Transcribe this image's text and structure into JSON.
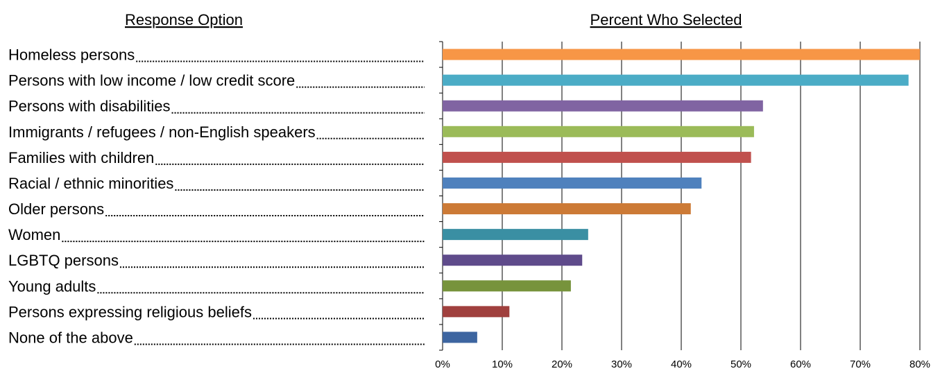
{
  "chart_data": {
    "type": "bar",
    "orientation": "horizontal",
    "y_label": "Response Option",
    "x_label": "Percent Who Selected",
    "categories": [
      "Homeless persons",
      "Persons with low income / low credit score",
      "Persons with disabilities",
      "Immigrants / refugees / non-English speakers",
      "Families with children",
      "Racial / ethnic minorities",
      "Older persons",
      "Women",
      "LGBTQ persons",
      "Young adults",
      "Persons expressing religious beliefs",
      "None of the above"
    ],
    "values": [
      80,
      78.1,
      53.7,
      52.2,
      51.7,
      43.4,
      41.6,
      24.4,
      23.4,
      21.5,
      11.2,
      5.8
    ],
    "colors": [
      "#f79646",
      "#4bacc6",
      "#8064a2",
      "#9bbb59",
      "#c0504d",
      "#4f81bd",
      "#cc7a36",
      "#3a8fa3",
      "#5f4b8b",
      "#77933c",
      "#a0403e",
      "#3d65a0"
    ],
    "xlim": [
      0,
      80
    ],
    "xticks": [
      {
        "value": 0,
        "label": "0%"
      },
      {
        "value": 10,
        "label": "10%"
      },
      {
        "value": 20,
        "label": "20%"
      },
      {
        "value": 30,
        "label": "30%"
      },
      {
        "value": 40,
        "label": "40%"
      },
      {
        "value": 50,
        "label": "50%"
      },
      {
        "value": 60,
        "label": "60%"
      },
      {
        "value": 70,
        "label": "70%"
      },
      {
        "value": 80,
        "label": "80%"
      }
    ],
    "grid": true
  }
}
